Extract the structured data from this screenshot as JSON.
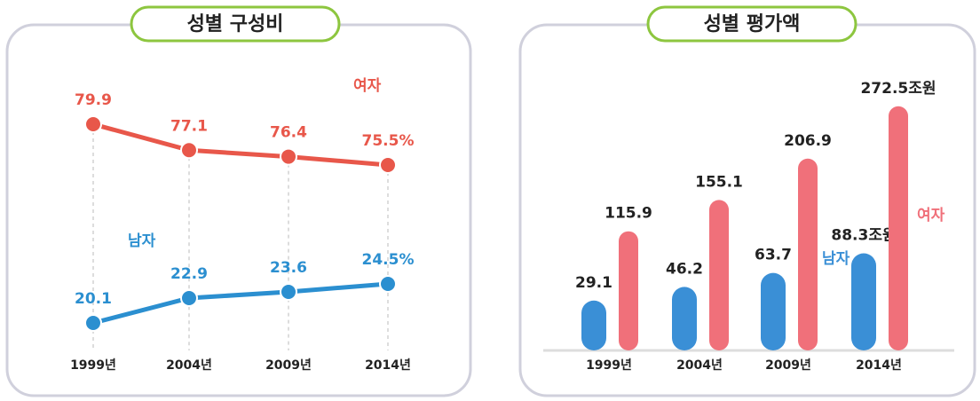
{
  "chart_data": [
    {
      "type": "line",
      "title": "성별 구성비",
      "categories": [
        "1999년",
        "2004년",
        "2009년",
        "2014년"
      ],
      "series": [
        {
          "name": "여자",
          "color": "#e8574a",
          "values": [
            79.9,
            77.1,
            76.4,
            75.5
          ],
          "value_labels": [
            "79.9",
            "77.1",
            "76.4",
            "75.5%"
          ]
        },
        {
          "name": "남자",
          "color": "#2b8fd0",
          "values": [
            20.1,
            22.9,
            23.6,
            24.5
          ],
          "value_labels": [
            "20.1",
            "22.9",
            "23.6",
            "24.5%"
          ]
        }
      ]
    },
    {
      "type": "bar",
      "title": "성별 평가액",
      "categories": [
        "1999년",
        "2004년",
        "2009년",
        "2014년"
      ],
      "series": [
        {
          "name": "남자",
          "color": "#3a8fd6",
          "values": [
            29.1,
            46.2,
            63.7,
            88.3
          ],
          "value_labels": [
            "29.1",
            "46.2",
            "63.7",
            "88.3조원"
          ]
        },
        {
          "name": "여자",
          "color": "#f0707a",
          "values": [
            115.9,
            155.1,
            206.9,
            272.5
          ],
          "value_labels": [
            "115.9",
            "155.1",
            "206.9",
            "272.5조원"
          ]
        }
      ]
    }
  ]
}
